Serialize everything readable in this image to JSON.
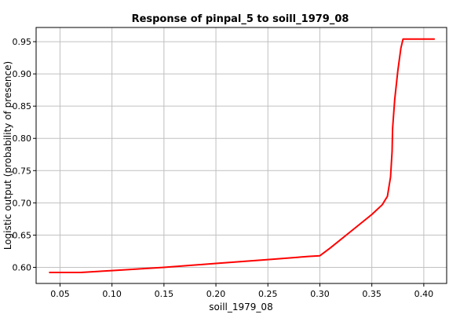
{
  "chart_data": {
    "type": "line",
    "title": "Response of pinpal_5 to soill_1979_08",
    "xlabel": "soill_1979_08",
    "ylabel": "Logistic output (probability of presence)",
    "xlim": [
      0.027,
      0.422
    ],
    "ylim": [
      0.575,
      0.972
    ],
    "xticks": [
      0.05,
      0.1,
      0.15,
      0.2,
      0.25,
      0.3,
      0.35,
      0.4
    ],
    "xtick_labels": [
      "0.05",
      "0.10",
      "0.15",
      "0.20",
      "0.25",
      "0.30",
      "0.35",
      "0.40"
    ],
    "yticks": [
      0.6,
      0.65,
      0.7,
      0.75,
      0.8,
      0.85,
      0.9,
      0.95
    ],
    "ytick_labels": [
      "0.60",
      "0.65",
      "0.70",
      "0.75",
      "0.80",
      "0.85",
      "0.90",
      "0.95"
    ],
    "grid": true,
    "legend": "none",
    "series": [
      {
        "color": "#ff0000",
        "x": [
          0.04,
          0.07,
          0.1,
          0.15,
          0.2,
          0.25,
          0.29,
          0.3,
          0.31,
          0.33,
          0.35,
          0.36,
          0.365,
          0.368,
          0.3695,
          0.37,
          0.372,
          0.375,
          0.378,
          0.38,
          0.39,
          0.41
        ],
        "y": [
          0.592,
          0.592,
          0.595,
          0.6,
          0.606,
          0.612,
          0.617,
          0.618,
          0.63,
          0.656,
          0.682,
          0.697,
          0.71,
          0.74,
          0.78,
          0.815,
          0.86,
          0.905,
          0.94,
          0.954,
          0.954,
          0.954
        ]
      }
    ]
  }
}
